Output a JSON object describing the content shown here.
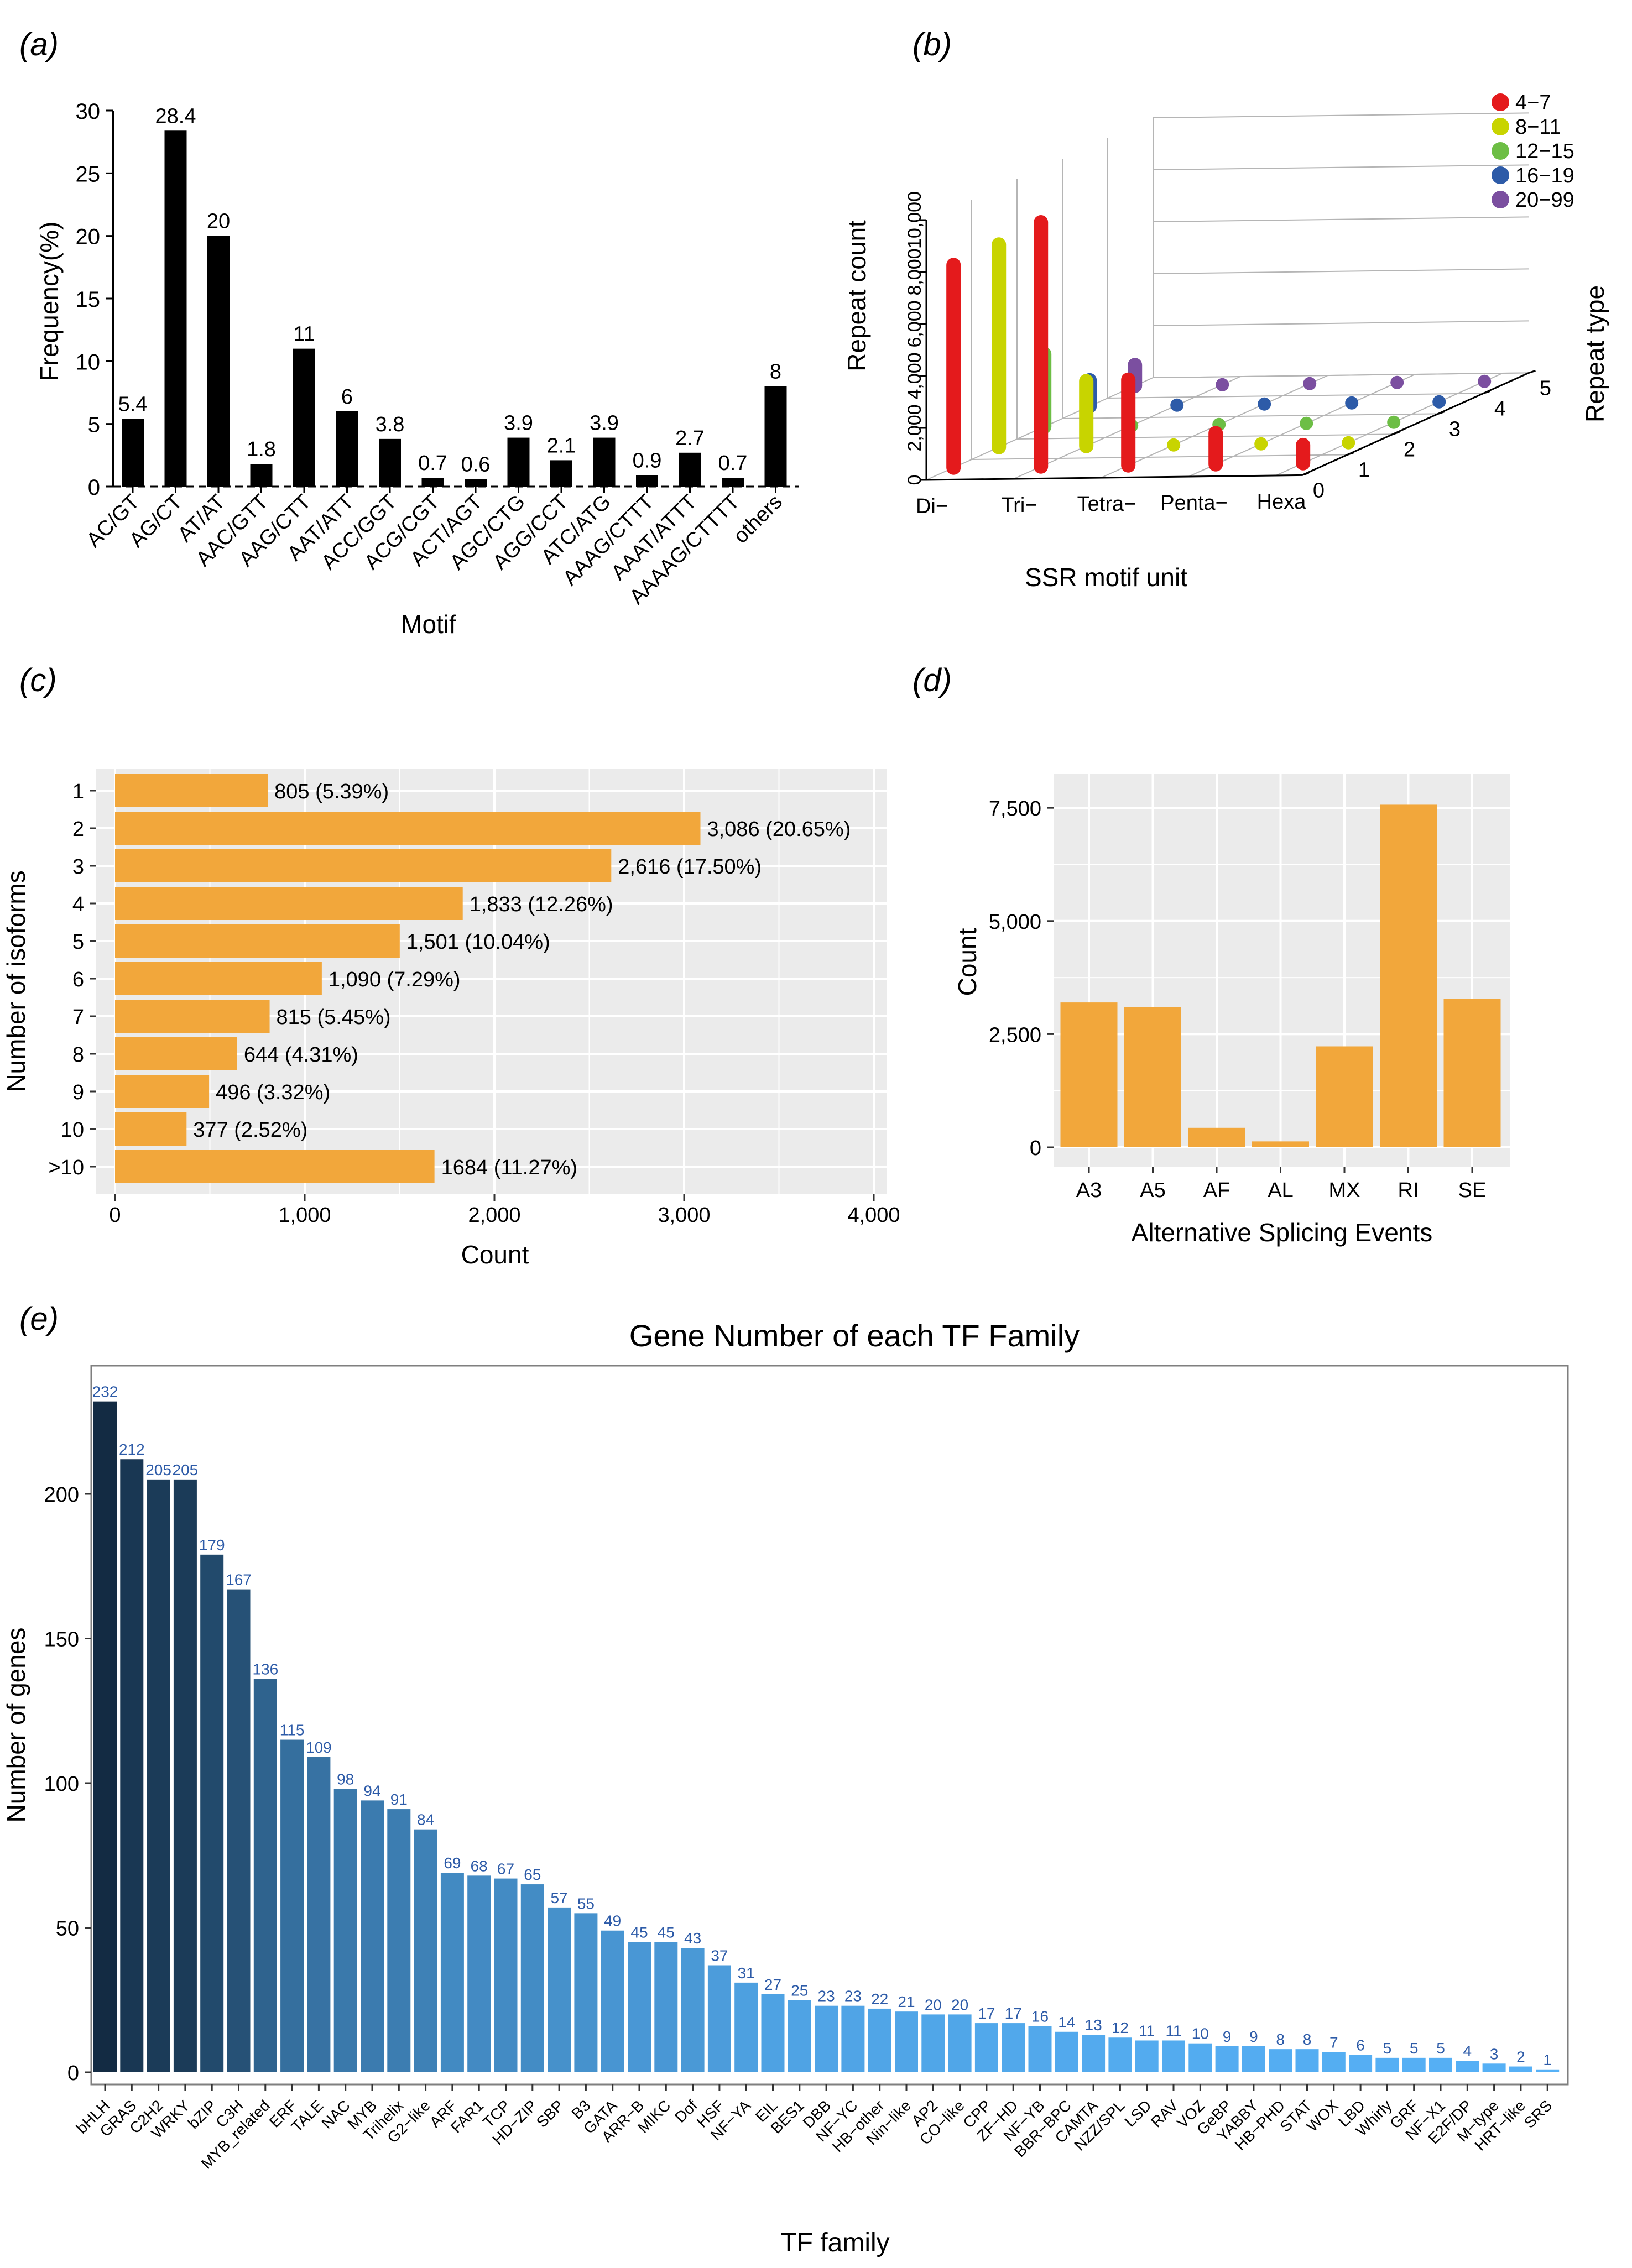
{
  "colors": {
    "black_bar": "#000000",
    "orange_bar": "#F2A73B",
    "panel_bg": "#EBEBEB",
    "grid": "#FFFFFF",
    "value_label_blue": "#2D5BA8",
    "tf_dark": "#132B43",
    "tf_light": "#56B1F7",
    "repeat_colors": [
      "#E41A1C",
      "#C8D400",
      "#6DBE45",
      "#2D5BA8",
      "#7B4FA0"
    ]
  },
  "chart_data": [
    {
      "panel": "(a)",
      "type": "bar",
      "xlabel": "Motif",
      "ylabel": "Frequency(%)",
      "ylim": [
        0,
        30
      ],
      "yticks": [
        "0",
        "5",
        "10",
        "15",
        "20",
        "25",
        "30"
      ],
      "categories": [
        "AC/GT",
        "AG/CT",
        "AT/AT",
        "AAC/GTT",
        "AAG/CTT",
        "AAT/ATT",
        "ACC/GGT",
        "ACG/CGT",
        "ACT/AGT",
        "AGC/CTG",
        "AGG/CCT",
        "ATC/ATG",
        "AAAG/CTTT",
        "AAAT/ATTT",
        "AAAAG/CTTTT",
        "others"
      ],
      "values": [
        5.4,
        28.4,
        20,
        1.8,
        11,
        6,
        3.8,
        0.7,
        0.6,
        3.9,
        2.1,
        3.9,
        0.9,
        2.7,
        0.7,
        8
      ],
      "labels": [
        "5.4",
        "28.4",
        "20",
        "1.8",
        "11",
        "6",
        "3.8",
        "0.7",
        "0.6",
        "3.9",
        "2.1",
        "3.9",
        "0.9",
        "2.7",
        "0.7",
        "8"
      ]
    },
    {
      "panel": "(b)",
      "type": "bar",
      "subtype": "3d-bar",
      "xlabel": "SSR motif unit",
      "ylabel": "Repeat count",
      "zlabel": "Repeat type",
      "categories": [
        "Di−",
        "Tri−",
        "Tetra−",
        "Penta−",
        "Hexa"
      ],
      "zticks": [
        "0",
        "1",
        "2",
        "3",
        "4",
        "5"
      ],
      "yticks": [
        "0",
        "2,000",
        "4,000",
        "6,000",
        "8,000",
        "10,000"
      ],
      "ylim": [
        0,
        10000
      ],
      "legend": [
        "4−7",
        "8−11",
        "12−15",
        "16−19",
        "20−99"
      ],
      "series": [
        {
          "name": "4−7",
          "values": [
            7800,
            9400,
            3300,
            1200,
            700
          ]
        },
        {
          "name": "8−11",
          "values": [
            7800,
            2500,
            0,
            0,
            0
          ]
        },
        {
          "name": "12−15",
          "values": [
            2800,
            0,
            0,
            0,
            0
          ]
        },
        {
          "name": "16−19",
          "values": [
            1000,
            0,
            0,
            0,
            0
          ]
        },
        {
          "name": "20−99",
          "values": [
            800,
            0,
            0,
            0,
            0
          ]
        }
      ]
    },
    {
      "panel": "(c)",
      "type": "bar",
      "orientation": "horizontal",
      "xlabel": "Count",
      "ylabel": "Number of isoforms",
      "xlim": [
        0,
        4000
      ],
      "xticks": [
        "0",
        "1,000",
        "2,000",
        "3,000",
        "4,000"
      ],
      "categories": [
        "1",
        "2",
        "3",
        "4",
        "5",
        "6",
        "7",
        "8",
        "9",
        "10",
        ">10"
      ],
      "values": [
        805,
        3086,
        2616,
        1833,
        1501,
        1090,
        815,
        644,
        496,
        377,
        1684
      ],
      "labels": [
        "805 (5.39%)",
        "3,086 (20.65%)",
        "2,616 (17.50%)",
        "1,833 (12.26%)",
        "1,501 (10.04%)",
        "1,090 (7.29%)",
        "815 (5.45%)",
        "644 (4.31%)",
        "496 (3.32%)",
        "377 (2.52%)",
        "1684 (11.27%)"
      ]
    },
    {
      "panel": "(d)",
      "type": "bar",
      "xlabel": "Alternative Splicing Events",
      "ylabel": "Count",
      "ylim": [
        0,
        8000
      ],
      "yticks": [
        "0",
        "2,500",
        "5,000",
        "7,500"
      ],
      "categories": [
        "A3",
        "A5",
        "AF",
        "AL",
        "MX",
        "RI",
        "SE"
      ],
      "values": [
        3200,
        3100,
        430,
        130,
        2230,
        7570,
        3280
      ]
    },
    {
      "panel": "(e)",
      "type": "bar",
      "title": "Gene Number of each TF Family",
      "xlabel": "TF family",
      "ylabel": "Number of genes",
      "ylim": [
        0,
        240
      ],
      "yticks": [
        "0",
        "50",
        "100",
        "150",
        "200"
      ],
      "categories": [
        "bHLH",
        "GRAS",
        "C2H2",
        "WRKY",
        "bZIP",
        "C3H",
        "MYB_related",
        "ERF",
        "TALE",
        "NAC",
        "MYB",
        "Trihelix",
        "G2-like",
        "ARF",
        "FAR1",
        "TCP",
        "HD-ZIP",
        "SBP",
        "B3",
        "GATA",
        "ARR-B",
        "MIKC",
        "Dof",
        "HSF",
        "NF-YA",
        "EIL",
        "BES1",
        "DBB",
        "NF-YC",
        "HB-other",
        "Nin-like",
        "AP2",
        "CO-like",
        "CPP",
        "ZF-HD",
        "NF-YB",
        "BBR-BPC",
        "CAMTA",
        "NZZ/SPL",
        "LSD",
        "RAV",
        "VOZ",
        "GeBP",
        "YABBY",
        "HB-PHD",
        "STAT",
        "WOX",
        "LBD",
        "Whirly",
        "GRF",
        "NF-X1",
        "E2F/DP",
        "M-type",
        "HRT-like",
        "SRS"
      ],
      "values": [
        232,
        212,
        205,
        205,
        179,
        167,
        136,
        115,
        109,
        98,
        94,
        91,
        84,
        69,
        68,
        67,
        65,
        57,
        55,
        49,
        45,
        45,
        43,
        37,
        31,
        27,
        25,
        23,
        23,
        22,
        21,
        20,
        20,
        17,
        17,
        16,
        14,
        13,
        12,
        11,
        11,
        10,
        9,
        9,
        8,
        8,
        7,
        6,
        5,
        5,
        5,
        4,
        3,
        2,
        1
      ],
      "tick_labels": [
        "bHLH",
        "GRAS",
        "C2H2",
        "WRKY",
        "bZIP",
        "C3H",
        "MYB_related",
        "ERF",
        "TALE",
        "NAC",
        "MYB",
        "Trihelix",
        "G2−like",
        "ARF",
        "FAR1",
        "TCP",
        "HD−ZIP",
        "SBP",
        "B3",
        "GATA",
        "ARR−B",
        "MIKC",
        "Dof",
        "HSF",
        "NF−YA",
        "EIL",
        "BES1",
        "DBB",
        "NF−YC",
        "HB−other",
        "Nin−like",
        "AP2",
        "CO−like",
        "CPP",
        "ZF−HD",
        "NF−YB",
        "BBR−BPC",
        "CAMTA",
        "NZZ/SPL",
        "LSD",
        "RAV",
        "VOZ",
        "GeBP",
        "YABBY",
        "HB−PHD",
        "STAT",
        "WOX",
        "LBD",
        "Whirly",
        "GRF",
        "NF−X1",
        "E2F/DP",
        "M−type",
        "HRT−like",
        "SRS"
      ]
    }
  ]
}
